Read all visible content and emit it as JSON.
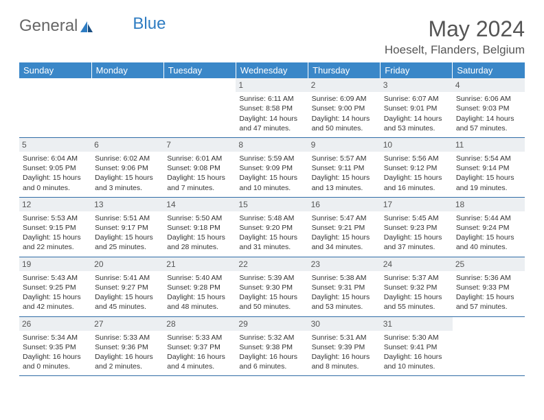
{
  "brand": {
    "general": "General",
    "blue": "Blue"
  },
  "title": "May 2024",
  "location": "Hoeselt, Flanders, Belgium",
  "colors": {
    "header_bg": "#3a87c8",
    "header_text": "#ffffff",
    "daynum_bg": "#eceff2",
    "text": "#333333",
    "rule": "#2e6ba5",
    "logo_blue": "#2e7cc2"
  },
  "weekdays": [
    "Sunday",
    "Monday",
    "Tuesday",
    "Wednesday",
    "Thursday",
    "Friday",
    "Saturday"
  ],
  "weeks": [
    [
      {
        "empty": true
      },
      {
        "empty": true
      },
      {
        "empty": true
      },
      {
        "day": "1",
        "sunrise": "Sunrise: 6:11 AM",
        "sunset": "Sunset: 8:58 PM",
        "daylight": "Daylight: 14 hours and 47 minutes."
      },
      {
        "day": "2",
        "sunrise": "Sunrise: 6:09 AM",
        "sunset": "Sunset: 9:00 PM",
        "daylight": "Daylight: 14 hours and 50 minutes."
      },
      {
        "day": "3",
        "sunrise": "Sunrise: 6:07 AM",
        "sunset": "Sunset: 9:01 PM",
        "daylight": "Daylight: 14 hours and 53 minutes."
      },
      {
        "day": "4",
        "sunrise": "Sunrise: 6:06 AM",
        "sunset": "Sunset: 9:03 PM",
        "daylight": "Daylight: 14 hours and 57 minutes."
      }
    ],
    [
      {
        "day": "5",
        "sunrise": "Sunrise: 6:04 AM",
        "sunset": "Sunset: 9:05 PM",
        "daylight": "Daylight: 15 hours and 0 minutes."
      },
      {
        "day": "6",
        "sunrise": "Sunrise: 6:02 AM",
        "sunset": "Sunset: 9:06 PM",
        "daylight": "Daylight: 15 hours and 3 minutes."
      },
      {
        "day": "7",
        "sunrise": "Sunrise: 6:01 AM",
        "sunset": "Sunset: 9:08 PM",
        "daylight": "Daylight: 15 hours and 7 minutes."
      },
      {
        "day": "8",
        "sunrise": "Sunrise: 5:59 AM",
        "sunset": "Sunset: 9:09 PM",
        "daylight": "Daylight: 15 hours and 10 minutes."
      },
      {
        "day": "9",
        "sunrise": "Sunrise: 5:57 AM",
        "sunset": "Sunset: 9:11 PM",
        "daylight": "Daylight: 15 hours and 13 minutes."
      },
      {
        "day": "10",
        "sunrise": "Sunrise: 5:56 AM",
        "sunset": "Sunset: 9:12 PM",
        "daylight": "Daylight: 15 hours and 16 minutes."
      },
      {
        "day": "11",
        "sunrise": "Sunrise: 5:54 AM",
        "sunset": "Sunset: 9:14 PM",
        "daylight": "Daylight: 15 hours and 19 minutes."
      }
    ],
    [
      {
        "day": "12",
        "sunrise": "Sunrise: 5:53 AM",
        "sunset": "Sunset: 9:15 PM",
        "daylight": "Daylight: 15 hours and 22 minutes."
      },
      {
        "day": "13",
        "sunrise": "Sunrise: 5:51 AM",
        "sunset": "Sunset: 9:17 PM",
        "daylight": "Daylight: 15 hours and 25 minutes."
      },
      {
        "day": "14",
        "sunrise": "Sunrise: 5:50 AM",
        "sunset": "Sunset: 9:18 PM",
        "daylight": "Daylight: 15 hours and 28 minutes."
      },
      {
        "day": "15",
        "sunrise": "Sunrise: 5:48 AM",
        "sunset": "Sunset: 9:20 PM",
        "daylight": "Daylight: 15 hours and 31 minutes."
      },
      {
        "day": "16",
        "sunrise": "Sunrise: 5:47 AM",
        "sunset": "Sunset: 9:21 PM",
        "daylight": "Daylight: 15 hours and 34 minutes."
      },
      {
        "day": "17",
        "sunrise": "Sunrise: 5:45 AM",
        "sunset": "Sunset: 9:23 PM",
        "daylight": "Daylight: 15 hours and 37 minutes."
      },
      {
        "day": "18",
        "sunrise": "Sunrise: 5:44 AM",
        "sunset": "Sunset: 9:24 PM",
        "daylight": "Daylight: 15 hours and 40 minutes."
      }
    ],
    [
      {
        "day": "19",
        "sunrise": "Sunrise: 5:43 AM",
        "sunset": "Sunset: 9:25 PM",
        "daylight": "Daylight: 15 hours and 42 minutes."
      },
      {
        "day": "20",
        "sunrise": "Sunrise: 5:41 AM",
        "sunset": "Sunset: 9:27 PM",
        "daylight": "Daylight: 15 hours and 45 minutes."
      },
      {
        "day": "21",
        "sunrise": "Sunrise: 5:40 AM",
        "sunset": "Sunset: 9:28 PM",
        "daylight": "Daylight: 15 hours and 48 minutes."
      },
      {
        "day": "22",
        "sunrise": "Sunrise: 5:39 AM",
        "sunset": "Sunset: 9:30 PM",
        "daylight": "Daylight: 15 hours and 50 minutes."
      },
      {
        "day": "23",
        "sunrise": "Sunrise: 5:38 AM",
        "sunset": "Sunset: 9:31 PM",
        "daylight": "Daylight: 15 hours and 53 minutes."
      },
      {
        "day": "24",
        "sunrise": "Sunrise: 5:37 AM",
        "sunset": "Sunset: 9:32 PM",
        "daylight": "Daylight: 15 hours and 55 minutes."
      },
      {
        "day": "25",
        "sunrise": "Sunrise: 5:36 AM",
        "sunset": "Sunset: 9:33 PM",
        "daylight": "Daylight: 15 hours and 57 minutes."
      }
    ],
    [
      {
        "day": "26",
        "sunrise": "Sunrise: 5:34 AM",
        "sunset": "Sunset: 9:35 PM",
        "daylight": "Daylight: 16 hours and 0 minutes."
      },
      {
        "day": "27",
        "sunrise": "Sunrise: 5:33 AM",
        "sunset": "Sunset: 9:36 PM",
        "daylight": "Daylight: 16 hours and 2 minutes."
      },
      {
        "day": "28",
        "sunrise": "Sunrise: 5:33 AM",
        "sunset": "Sunset: 9:37 PM",
        "daylight": "Daylight: 16 hours and 4 minutes."
      },
      {
        "day": "29",
        "sunrise": "Sunrise: 5:32 AM",
        "sunset": "Sunset: 9:38 PM",
        "daylight": "Daylight: 16 hours and 6 minutes."
      },
      {
        "day": "30",
        "sunrise": "Sunrise: 5:31 AM",
        "sunset": "Sunset: 9:39 PM",
        "daylight": "Daylight: 16 hours and 8 minutes."
      },
      {
        "day": "31",
        "sunrise": "Sunrise: 5:30 AM",
        "sunset": "Sunset: 9:41 PM",
        "daylight": "Daylight: 16 hours and 10 minutes."
      },
      {
        "empty": true
      }
    ]
  ]
}
